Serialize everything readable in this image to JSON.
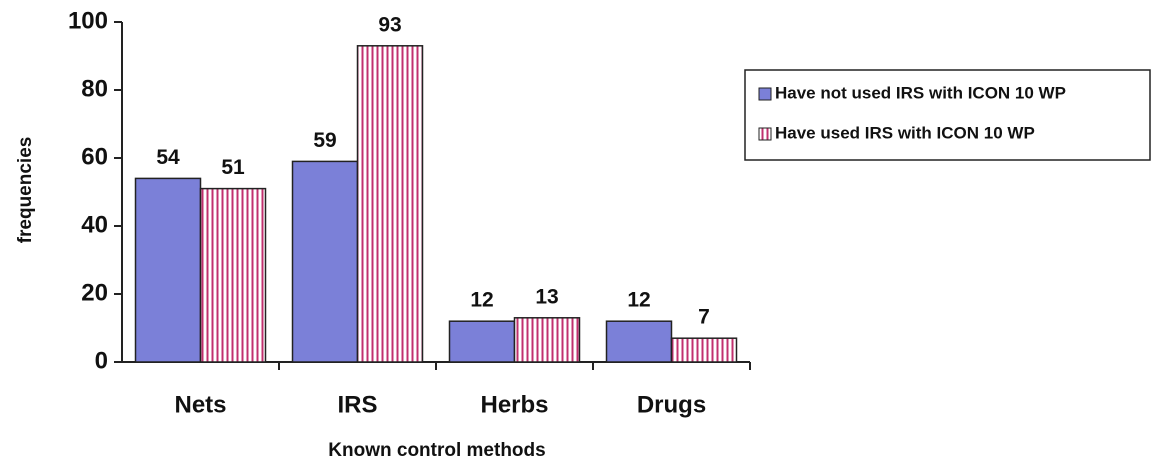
{
  "chart_data": {
    "type": "bar",
    "x_label": "Known control methods",
    "y_label": "frequencies",
    "categories": [
      "Nets",
      "IRS",
      "Herbs",
      "Drugs"
    ],
    "series": [
      {
        "name": "Have not used IRS with ICON 10 WP",
        "color": "#7b80d8",
        "pattern": "solid",
        "values": [
          54,
          59,
          12,
          12
        ]
      },
      {
        "name": "Have used IRS with ICON 10 WP",
        "color": "#c0306e",
        "pattern": "vertical-stripes",
        "values": [
          51,
          93,
          13,
          7
        ]
      }
    ],
    "ylim": [
      0,
      100
    ],
    "yticks": [
      0,
      20,
      40,
      60,
      80,
      100
    ],
    "legend": "right"
  }
}
